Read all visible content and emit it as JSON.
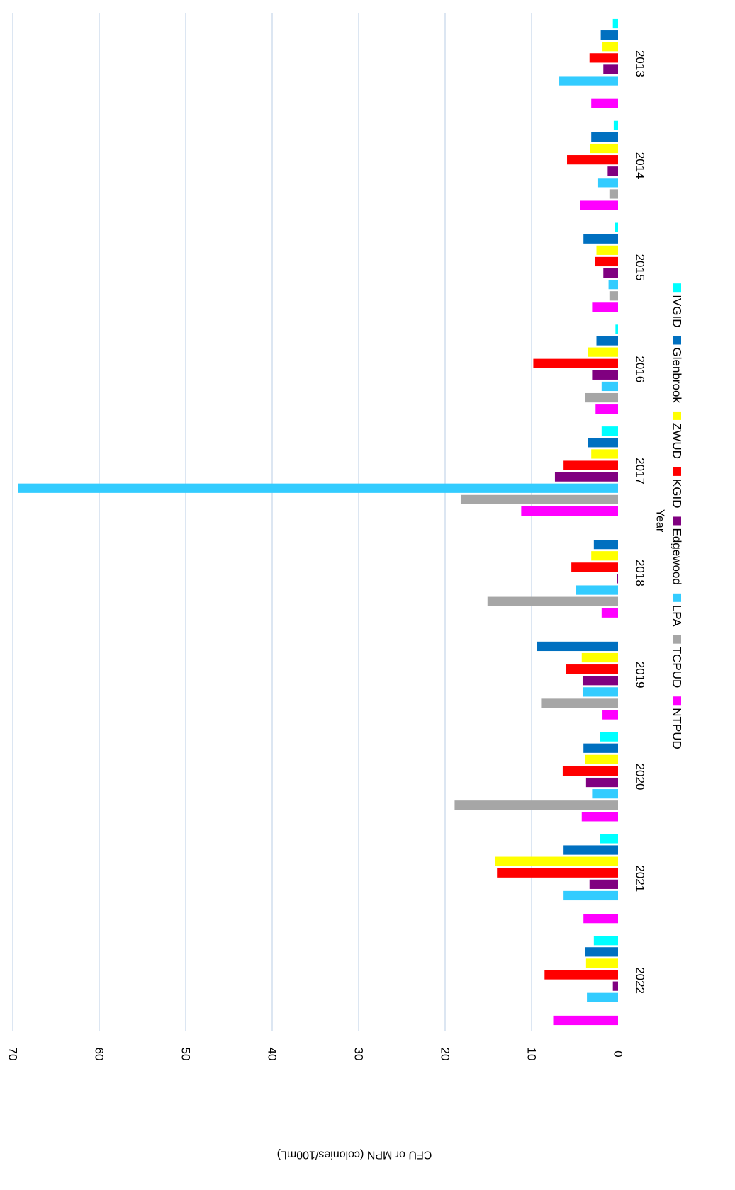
{
  "chart_data": {
    "type": "bar",
    "title": "",
    "xlabel": "Year",
    "ylabel": "CFU or MPN (colonies/100mL)",
    "ylim": [
      0,
      70
    ],
    "y_ticks": [
      0,
      10,
      20,
      30,
      40,
      50,
      60,
      70
    ],
    "grid": true,
    "orientation": "rotated 90 degrees clockwise",
    "legend_position": "bottom",
    "categories": [
      "2013",
      "2014",
      "2015",
      "2016",
      "2017",
      "2018",
      "2019",
      "2020",
      "2021",
      "2022"
    ],
    "series": [
      {
        "name": "IVGID",
        "color": "#00FFFF",
        "values": [
          0.6,
          0.5,
          0.4,
          0.3,
          1.9,
          null,
          null,
          2.1,
          2.1,
          2.8
        ]
      },
      {
        "name": "Glenbrook",
        "color": "#0070C0",
        "values": [
          2.0,
          3.1,
          4.0,
          2.5,
          3.5,
          2.8,
          9.4,
          4.0,
          6.3,
          3.8
        ]
      },
      {
        "name": "ZWUD",
        "color": "#FFFF00",
        "values": [
          1.8,
          3.2,
          2.5,
          3.5,
          3.1,
          3.1,
          4.2,
          3.8,
          14.2,
          3.7
        ]
      },
      {
        "name": "KGID",
        "color": "#FF0000",
        "values": [
          3.3,
          5.9,
          2.7,
          9.8,
          6.3,
          5.4,
          6.0,
          6.4,
          14.0,
          8.5
        ]
      },
      {
        "name": "Edgewood",
        "color": "#800080",
        "values": [
          1.7,
          1.2,
          1.7,
          3.0,
          7.3,
          0.1,
          4.1,
          3.7,
          3.3,
          0.6
        ]
      },
      {
        "name": "LPA",
        "color": "#33CCFF",
        "values": [
          6.8,
          2.3,
          1.1,
          1.9,
          69.4,
          4.9,
          4.1,
          3.0,
          6.3,
          3.6
        ]
      },
      {
        "name": "TCPUD",
        "color": "#A6A6A6",
        "values": [
          null,
          1.0,
          1.0,
          3.8,
          18.2,
          15.1,
          8.9,
          18.9,
          null,
          null
        ]
      },
      {
        "name": "NTPUD",
        "color": "#FF00FF",
        "values": [
          3.1,
          4.4,
          3.0,
          2.6,
          11.2,
          1.9,
          1.8,
          4.2,
          4.0,
          7.5
        ]
      }
    ]
  }
}
